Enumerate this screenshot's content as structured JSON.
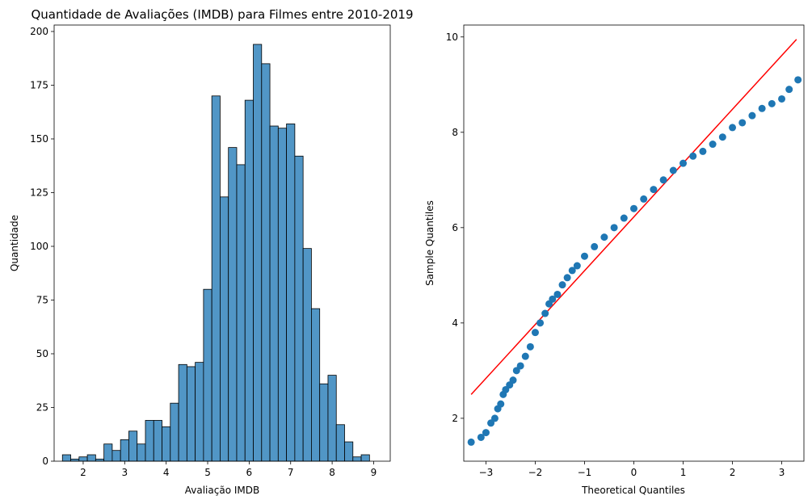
{
  "chart_data": [
    {
      "type": "bar",
      "title": "Quantidade de Avaliações (IMDB) para Filmes entre 2010-2019",
      "xlabel": "Avaliação IMDB",
      "ylabel": "Quantidade",
      "xlim": [
        1.3,
        9.4
      ],
      "ylim": [
        0,
        203
      ],
      "xticks": [
        2,
        3,
        4,
        5,
        6,
        7,
        8,
        9
      ],
      "yticks": [
        0,
        25,
        50,
        75,
        100,
        125,
        150,
        175,
        200
      ],
      "bar_color": "#5196c6",
      "bin_width": 0.2,
      "bins": [
        {
          "x0": 1.5,
          "count": 3
        },
        {
          "x0": 1.7,
          "count": 1
        },
        {
          "x0": 1.9,
          "count": 2
        },
        {
          "x0": 2.1,
          "count": 3
        },
        {
          "x0": 2.3,
          "count": 1
        },
        {
          "x0": 2.5,
          "count": 8
        },
        {
          "x0": 2.7,
          "count": 5
        },
        {
          "x0": 2.9,
          "count": 10
        },
        {
          "x0": 3.1,
          "count": 14
        },
        {
          "x0": 3.3,
          "count": 8
        },
        {
          "x0": 3.5,
          "count": 19
        },
        {
          "x0": 3.7,
          "count": 19
        },
        {
          "x0": 3.9,
          "count": 16
        },
        {
          "x0": 4.1,
          "count": 27
        },
        {
          "x0": 4.3,
          "count": 45
        },
        {
          "x0": 4.5,
          "count": 44
        },
        {
          "x0": 4.7,
          "count": 46
        },
        {
          "x0": 4.9,
          "count": 80
        },
        {
          "x0": 5.1,
          "count": 170
        },
        {
          "x0": 5.3,
          "count": 123
        },
        {
          "x0": 5.5,
          "count": 146
        },
        {
          "x0": 5.7,
          "count": 138
        },
        {
          "x0": 5.9,
          "count": 168
        },
        {
          "x0": 6.1,
          "count": 194
        },
        {
          "x0": 6.3,
          "count": 185
        },
        {
          "x0": 6.5,
          "count": 156
        },
        {
          "x0": 6.7,
          "count": 155
        },
        {
          "x0": 6.9,
          "count": 157
        },
        {
          "x0": 7.1,
          "count": 142
        },
        {
          "x0": 7.3,
          "count": 99
        },
        {
          "x0": 7.5,
          "count": 71
        },
        {
          "x0": 7.7,
          "count": 36
        },
        {
          "x0": 7.9,
          "count": 40
        },
        {
          "x0": 8.1,
          "count": 17
        },
        {
          "x0": 8.3,
          "count": 9
        },
        {
          "x0": 8.5,
          "count": 2
        },
        {
          "x0": 8.7,
          "count": 3
        }
      ]
    },
    {
      "type": "scatter",
      "title": "",
      "xlabel": "Theoretical Quantiles",
      "ylabel": "Sample Quantiles",
      "xlim": [
        -3.45,
        3.45
      ],
      "ylim": [
        1.1,
        10.25
      ],
      "xticks": [
        -3,
        -2,
        -1,
        0,
        1,
        2,
        3
      ],
      "yticks": [
        2,
        4,
        6,
        8,
        10
      ],
      "point_color": "#1f77b4",
      "line_color": "#ff0000",
      "reference_line": {
        "x": [
          -3.3,
          3.3
        ],
        "y": [
          2.5,
          9.95
        ]
      },
      "points": {
        "x": [
          -3.3,
          -3.1,
          -3.0,
          -2.9,
          -2.82,
          -2.76,
          -2.7,
          -2.65,
          -2.6,
          -2.52,
          -2.45,
          -2.38,
          -2.3,
          -2.2,
          -2.1,
          -2.0,
          -1.9,
          -1.8,
          -1.72,
          -1.65,
          -1.55,
          -1.45,
          -1.35,
          -1.25,
          -1.15,
          -1.0,
          -0.8,
          -0.6,
          -0.4,
          -0.2,
          0.0,
          0.2,
          0.4,
          0.6,
          0.8,
          1.0,
          1.2,
          1.4,
          1.6,
          1.8,
          2.0,
          2.2,
          2.4,
          2.6,
          2.8,
          3.0,
          3.15,
          3.33
        ],
        "y": [
          1.5,
          1.6,
          1.7,
          1.9,
          2.0,
          2.2,
          2.3,
          2.5,
          2.6,
          2.7,
          2.8,
          3.0,
          3.1,
          3.3,
          3.5,
          3.8,
          4.0,
          4.2,
          4.4,
          4.5,
          4.6,
          4.8,
          4.95,
          5.1,
          5.2,
          5.4,
          5.6,
          5.8,
          6.0,
          6.2,
          6.4,
          6.6,
          6.8,
          7.0,
          7.2,
          7.35,
          7.5,
          7.6,
          7.75,
          7.9,
          8.1,
          8.2,
          8.35,
          8.5,
          8.6,
          8.7,
          8.9,
          9.1
        ]
      }
    }
  ]
}
